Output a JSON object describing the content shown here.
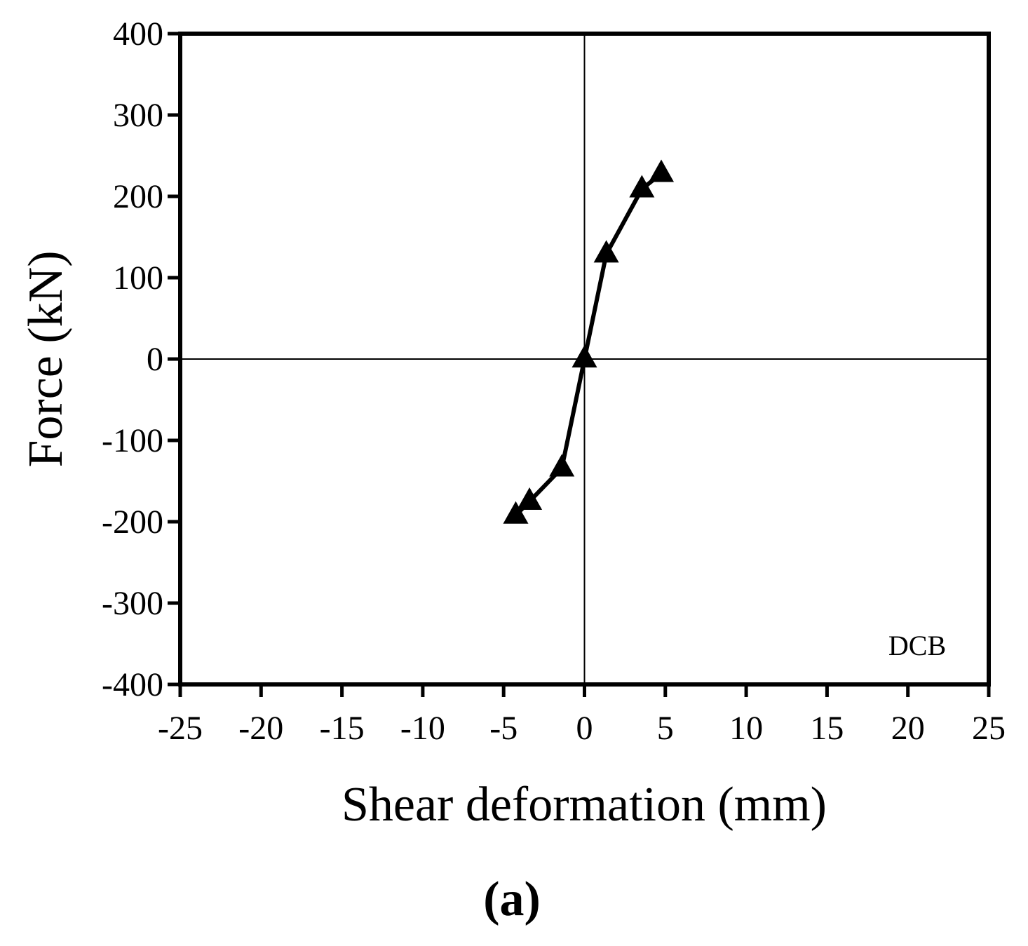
{
  "chart_data": {
    "type": "line",
    "x_label": "Shear deformation (mm)",
    "y_label": "Force (kN)",
    "annotation": "DCB",
    "caption": "(a)",
    "x": [
      -4.25,
      -3.4,
      -1.4,
      0,
      1.35,
      3.55,
      4.75
    ],
    "series": [
      {
        "color": "#000000",
        "marker": "triangle",
        "values": [
          -192,
          -175,
          -134,
          0,
          129,
          209,
          228
        ]
      }
    ],
    "xlim": [
      -25,
      25
    ],
    "xticks": [
      -25,
      -20,
      -15,
      -10,
      -5,
      0,
      5,
      10,
      15,
      20,
      25
    ],
    "ylim": [
      -400,
      400
    ],
    "yticks": [
      -400,
      -300,
      -200,
      -100,
      0,
      100,
      200,
      300,
      400
    ],
    "zero_lines": true
  }
}
